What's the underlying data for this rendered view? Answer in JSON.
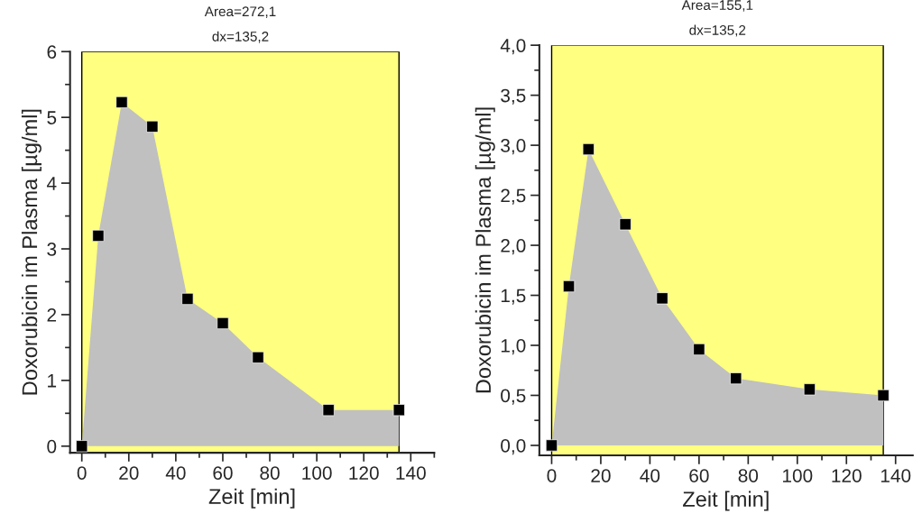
{
  "chart_data": [
    {
      "type": "area",
      "xlabel": "Zeit [min]",
      "ylabel": "Doxorubicin im Plasma [µg/ml]",
      "annotations": [
        "Area=272,1",
        "dx=135,2"
      ],
      "x": [
        0,
        7,
        17,
        30,
        45,
        60,
        75,
        105,
        135
      ],
      "series": [
        {
          "color": "#c0c0c0",
          "values": [
            0,
            3.2,
            5.23,
            4.86,
            2.24,
            1.87,
            1.35,
            0.55,
            0.55
          ]
        }
      ],
      "marker": "square",
      "bands": [
        {
          "axis": "x",
          "from": 0,
          "to": 135,
          "color": "#ffff80"
        }
      ],
      "xlim": [
        -5,
        150
      ],
      "xticks": [
        0,
        20,
        40,
        60,
        80,
        100,
        120,
        140
      ],
      "ylim": [
        -0.1,
        6
      ],
      "yticks": [
        0,
        1,
        2,
        3,
        4,
        5,
        6
      ],
      "grid": false,
      "legend": false
    },
    {
      "type": "area",
      "xlabel": "Zeit [min]",
      "ylabel": "Doxorubicin im Plasma [µg/ml]",
      "annotations": [
        "Area=155,1",
        "dx=135,2"
      ],
      "x": [
        0,
        7,
        15,
        30,
        45,
        60,
        75,
        105,
        135
      ],
      "series": [
        {
          "color": "#c0c0c0",
          "values": [
            0,
            1.59,
            2.96,
            2.21,
            1.47,
            0.96,
            0.67,
            0.56,
            0.5
          ]
        }
      ],
      "marker": "square",
      "bands": [
        {
          "axis": "x",
          "from": 0,
          "to": 135,
          "color": "#ffff80"
        }
      ],
      "xlim": [
        -5,
        147
      ],
      "xticks": [
        0,
        20,
        40,
        60,
        80,
        100,
        120,
        140
      ],
      "ylim": [
        -0.1,
        4
      ],
      "yticks": [
        {
          "value": 0,
          "label": "0,0"
        },
        {
          "value": 0.5,
          "label": "0,5"
        },
        {
          "value": 1,
          "label": "1,0"
        },
        {
          "value": 1.5,
          "label": "1,5"
        },
        {
          "value": 2,
          "label": "2,0"
        },
        {
          "value": 2.5,
          "label": "2,5"
        },
        {
          "value": 3,
          "label": "3,0"
        },
        {
          "value": 3.5,
          "label": "3,5"
        },
        {
          "value": 4,
          "label": "4,0"
        }
      ],
      "grid": false,
      "legend": false
    }
  ]
}
